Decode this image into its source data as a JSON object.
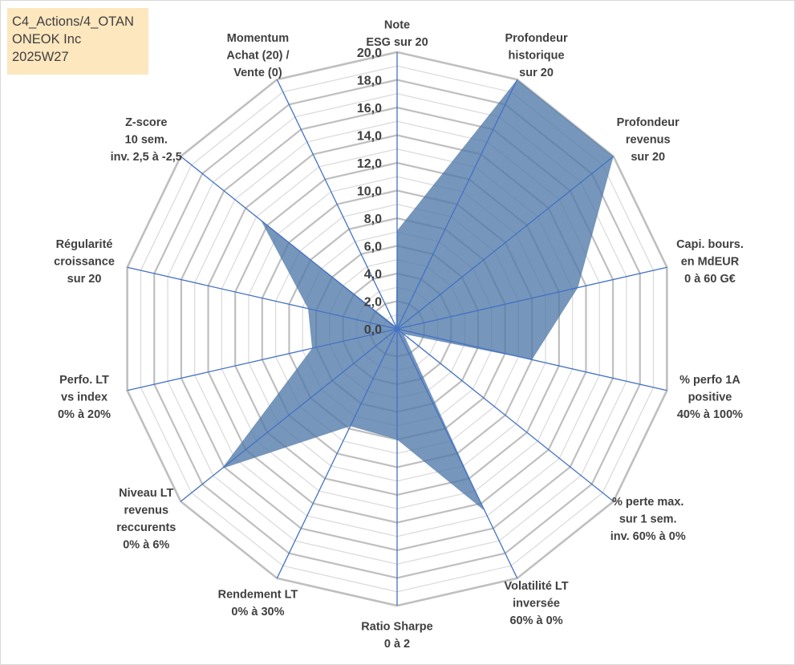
{
  "info_box": {
    "line1": "C4_Actions/4_OTAN",
    "line2": "ONEOK Inc",
    "line3": "2025W27"
  },
  "colors": {
    "area_fill": "#4f79a8",
    "axis_line": "#4472c4",
    "grid_major": "#bfbfbf",
    "grid_minor": "#d9d9d9",
    "text": "#404040",
    "info_bg": "#fde7bf"
  },
  "chart_data": {
    "type": "radar",
    "rmax": 20,
    "tick_step": 2,
    "tick_labels": [
      "0,0",
      "2,0",
      "4,0",
      "6,0",
      "8,0",
      "10,0",
      "12,0",
      "14,0",
      "16,0",
      "18,0",
      "20,0"
    ],
    "axes": [
      "Note\nESG sur 20",
      "Profondeur\nhistorique\nsur 20",
      "Profondeur\nrevenus\nsur 20",
      "Capi. bours.\nen MdEUR\n0 à 60 G€",
      "% perfo 1A\npositive\n40% à 100%",
      "% perte max.\nsur 1 sem.\ninv. 60% à 0%",
      "Volatilité LT\ninversée\n60% à 0%",
      "Ratio Sharpe\n0 à 2",
      "Rendement LT\n0% à 30%",
      "Niveau LT\nrevenus\nreccurents\n0% à 6%",
      "Perfo. LT\nvs index\n0% à 20%",
      "Régularité\ncroissance\nsur 20",
      "Z-score\n10 sem.\ninv. 2,5 à -2,5",
      "Momentum\nAchat (20) /\nVente (0)"
    ],
    "series": [
      {
        "values": [
          7.1,
          20.0,
          20.0,
          13.4,
          10.0,
          0.6,
          14.6,
          8.0,
          7.8,
          16.2,
          6.3,
          6.6,
          12.6,
          0.2
        ]
      }
    ]
  }
}
